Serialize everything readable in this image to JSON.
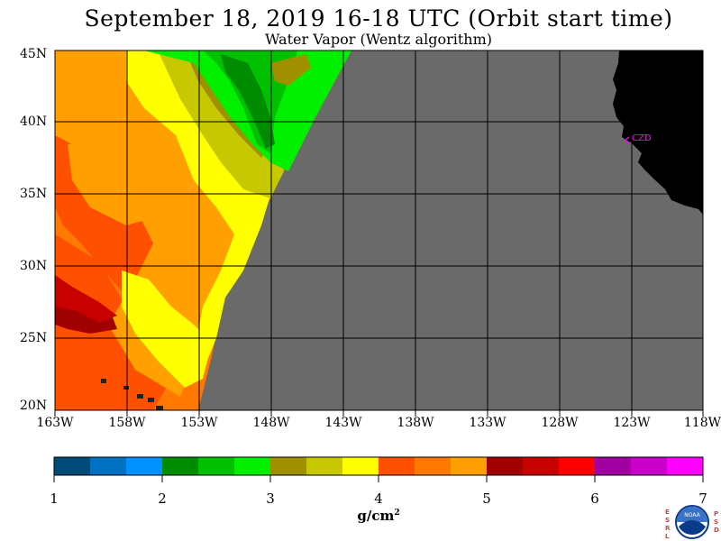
{
  "title": "September 18, 2019  16-18 UTC  (Orbit start time)",
  "subtitle": "Water Vapor (Wentz algorithm)",
  "map": {
    "lat_labels": [
      "45N",
      "40N",
      "35N",
      "30N",
      "25N",
      "20N"
    ],
    "lon_labels": [
      "163W",
      "158W",
      "153W",
      "148W",
      "143W",
      "138W",
      "133W",
      "128W",
      "123W",
      "118W"
    ],
    "station_label": "CZD",
    "colors": {
      "no_data": "#6a6a6a",
      "land": "#000000",
      "station": "#ff00ff",
      "grid": "#000000"
    }
  },
  "colorbar": {
    "tick_labels": [
      "1",
      "2",
      "3",
      "4",
      "5",
      "6",
      "7"
    ],
    "units": "g/cm",
    "units_sup": "2",
    "colors": [
      "#004a78",
      "#0070c0",
      "#0090ff",
      "#008c00",
      "#00c000",
      "#00f000",
      "#a09000",
      "#c8c800",
      "#ffff00",
      "#ff5000",
      "#ff7800",
      "#ffa000",
      "#a00000",
      "#c80000",
      "#ff0000",
      "#a000a0",
      "#c800c8",
      "#ff00ff"
    ]
  },
  "logo": {
    "left_letters": "ESRL",
    "right_letters": "PSD",
    "badge_text": "NOAA"
  }
}
